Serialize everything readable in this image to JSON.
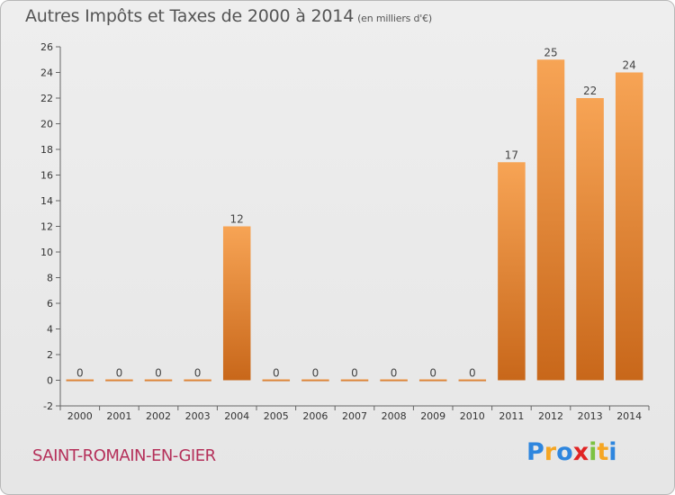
{
  "header": {
    "title": "Autres Impôts et Taxes de 2000 à 2014",
    "unit": "(en milliers d'€)"
  },
  "footer": {
    "town": "SAINT-ROMAIN-EN-GIER",
    "logo_letters": [
      {
        "ch": "P",
        "color": "#2e86de"
      },
      {
        "ch": "r",
        "color": "#f5a623"
      },
      {
        "ch": "o",
        "color": "#2e86de"
      },
      {
        "ch": "x",
        "color": "#e02424"
      },
      {
        "ch": "i",
        "color": "#7cc242"
      },
      {
        "ch": "t",
        "color": "#f5a623"
      },
      {
        "ch": "i",
        "color": "#2e86de"
      }
    ]
  },
  "chart_data": {
    "type": "bar",
    "categories": [
      "2000",
      "2001",
      "2002",
      "2003",
      "2004",
      "2005",
      "2006",
      "2007",
      "2008",
      "2009",
      "2010",
      "2011",
      "2012",
      "2013",
      "2014"
    ],
    "values": [
      0,
      0,
      0,
      0,
      12,
      0,
      0,
      0,
      0,
      0,
      0,
      17,
      25,
      22,
      24
    ],
    "data_labels": [
      "0",
      "0",
      "0",
      "0",
      "12",
      "0",
      "0",
      "0",
      "0",
      "0",
      "0",
      "17",
      "25",
      "22",
      "24"
    ],
    "yticks": [
      "-2",
      "0",
      "2",
      "4",
      "6",
      "8",
      "10",
      "12",
      "14",
      "16",
      "18",
      "20",
      "22",
      "24",
      "26"
    ],
    "ylim": [
      -2,
      26
    ],
    "ytick_step": 2,
    "grid": false,
    "bar_color_light": "#f7a455",
    "bar_color_dark": "#c8671a"
  }
}
